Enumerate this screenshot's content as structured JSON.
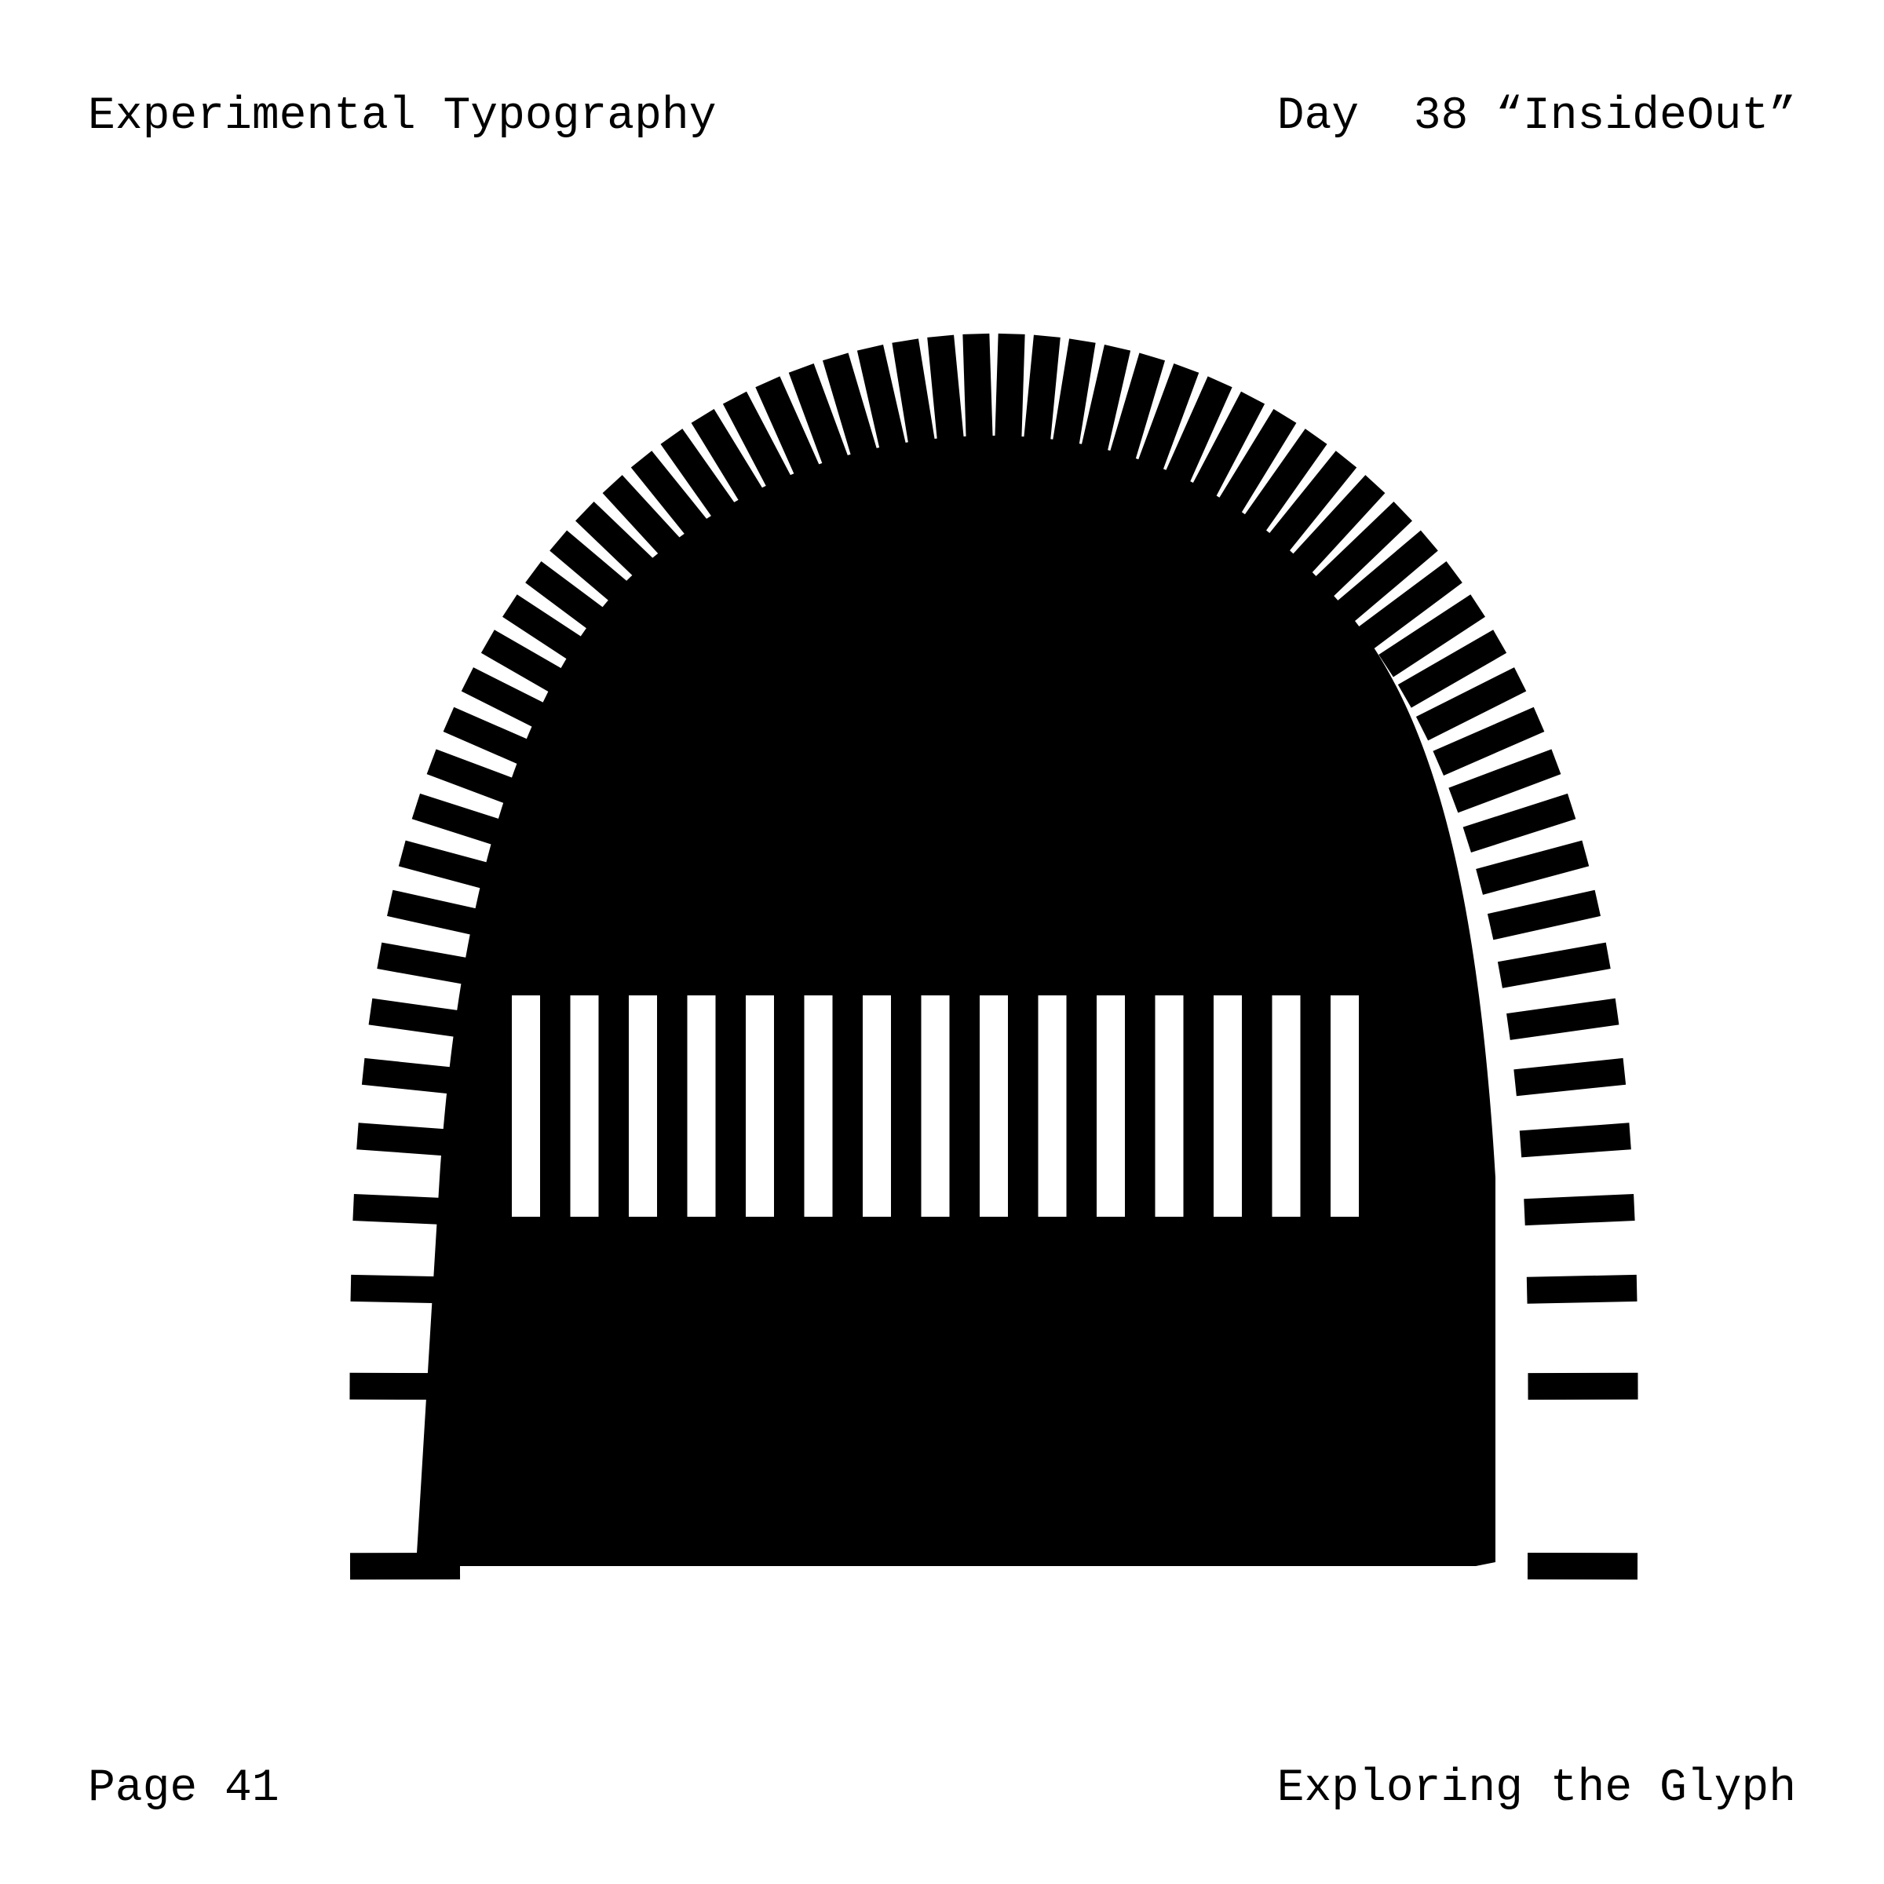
{
  "header": {
    "series_title": "Experimental Typography",
    "day_label": "Day  38 “InsideOut”"
  },
  "footer": {
    "page_label": "Page 41",
    "caption": "Exploring the Glyph"
  },
  "artwork": {
    "fill_color": "#000000",
    "background_color": "#ffffff"
  }
}
